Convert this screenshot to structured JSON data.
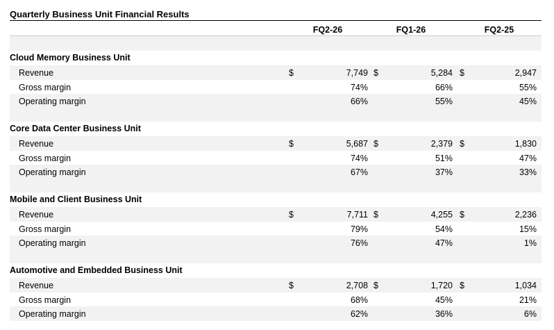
{
  "title": "Quarterly Business Unit Financial Results",
  "columns": [
    "FQ2-26",
    "FQ1-26",
    "FQ2-25"
  ],
  "currency_symbol": "$",
  "sections": [
    {
      "name": "Cloud Memory Business Unit",
      "rows": [
        {
          "label": "Revenue",
          "values": [
            "7,749",
            "5,284",
            "2,947"
          ]
        },
        {
          "label": "Gross margin",
          "values": [
            "74%",
            "66%",
            "55%"
          ]
        },
        {
          "label": "Operating margin",
          "values": [
            "66%",
            "55%",
            "45%"
          ]
        }
      ]
    },
    {
      "name": "Core Data Center Business Unit",
      "rows": [
        {
          "label": "Revenue",
          "values": [
            "5,687",
            "2,379",
            "1,830"
          ]
        },
        {
          "label": "Gross margin",
          "values": [
            "74%",
            "51%",
            "47%"
          ]
        },
        {
          "label": "Operating margin",
          "values": [
            "67%",
            "37%",
            "33%"
          ]
        }
      ]
    },
    {
      "name": "Mobile and Client Business Unit",
      "rows": [
        {
          "label": "Revenue",
          "values": [
            "7,711",
            "4,255",
            "2,236"
          ]
        },
        {
          "label": "Gross margin",
          "values": [
            "79%",
            "54%",
            "15%"
          ]
        },
        {
          "label": "Operating margin",
          "values": [
            "76%",
            "47%",
            "1%"
          ]
        }
      ]
    },
    {
      "name": "Automotive and Embedded Business Unit",
      "rows": [
        {
          "label": "Revenue",
          "values": [
            "2,708",
            "1,720",
            "1,034"
          ]
        },
        {
          "label": "Gross margin",
          "values": [
            "68%",
            "45%",
            "21%"
          ]
        },
        {
          "label": "Operating margin",
          "values": [
            "62%",
            "36%",
            "6%"
          ]
        }
      ]
    }
  ]
}
